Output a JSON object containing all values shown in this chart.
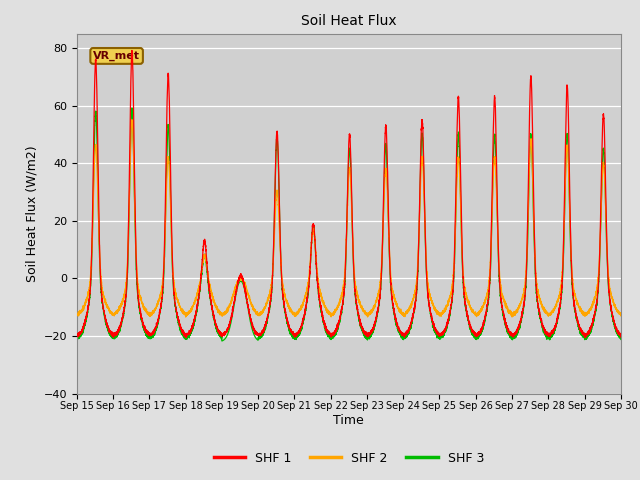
{
  "title": "Soil Heat Flux",
  "xlabel": "Time",
  "ylabel": "Soil Heat Flux (W/m2)",
  "ylim": [
    -40,
    85
  ],
  "yticks": [
    -40,
    -20,
    0,
    20,
    40,
    60,
    80
  ],
  "background_color": "#e0e0e0",
  "plot_bg_color": "#d0d0d0",
  "legend_labels": [
    "SHF 1",
    "SHF 2",
    "SHF 3"
  ],
  "legend_colors": [
    "#ff0000",
    "#ffa500",
    "#00bb00"
  ],
  "annotation_text": "VR_met",
  "annotation_bg": "#f0d050",
  "annotation_border": "#8B6000",
  "x_tick_labels": [
    "Sep 15",
    "Sep 16",
    "Sep 17",
    "Sep 18",
    "Sep 19",
    "Sep 20",
    "Sep 21",
    "Sep 22",
    "Sep 23",
    "Sep 24",
    "Sep 25",
    "Sep 26",
    "Sep 27",
    "Sep 28",
    "Sep 29",
    "Sep 30"
  ],
  "n_points": 7200,
  "day_peaks_shf1": [
    76,
    79,
    71,
    13,
    1,
    51,
    19,
    50,
    53,
    55,
    63,
    63,
    70,
    67,
    57
  ],
  "day_peaks_shf2": [
    46,
    55,
    42,
    8,
    0,
    30,
    17,
    38,
    38,
    42,
    42,
    42,
    48,
    46,
    40
  ],
  "day_peaks_shf3": [
    58,
    59,
    53,
    8,
    -1,
    49,
    18,
    45,
    46,
    50,
    50,
    50,
    50,
    50,
    45
  ],
  "night_shf1": -20,
  "night_shf2": -13,
  "night_shf3": -21,
  "peak_sigma": 1.4,
  "peak_hour": 12.5
}
